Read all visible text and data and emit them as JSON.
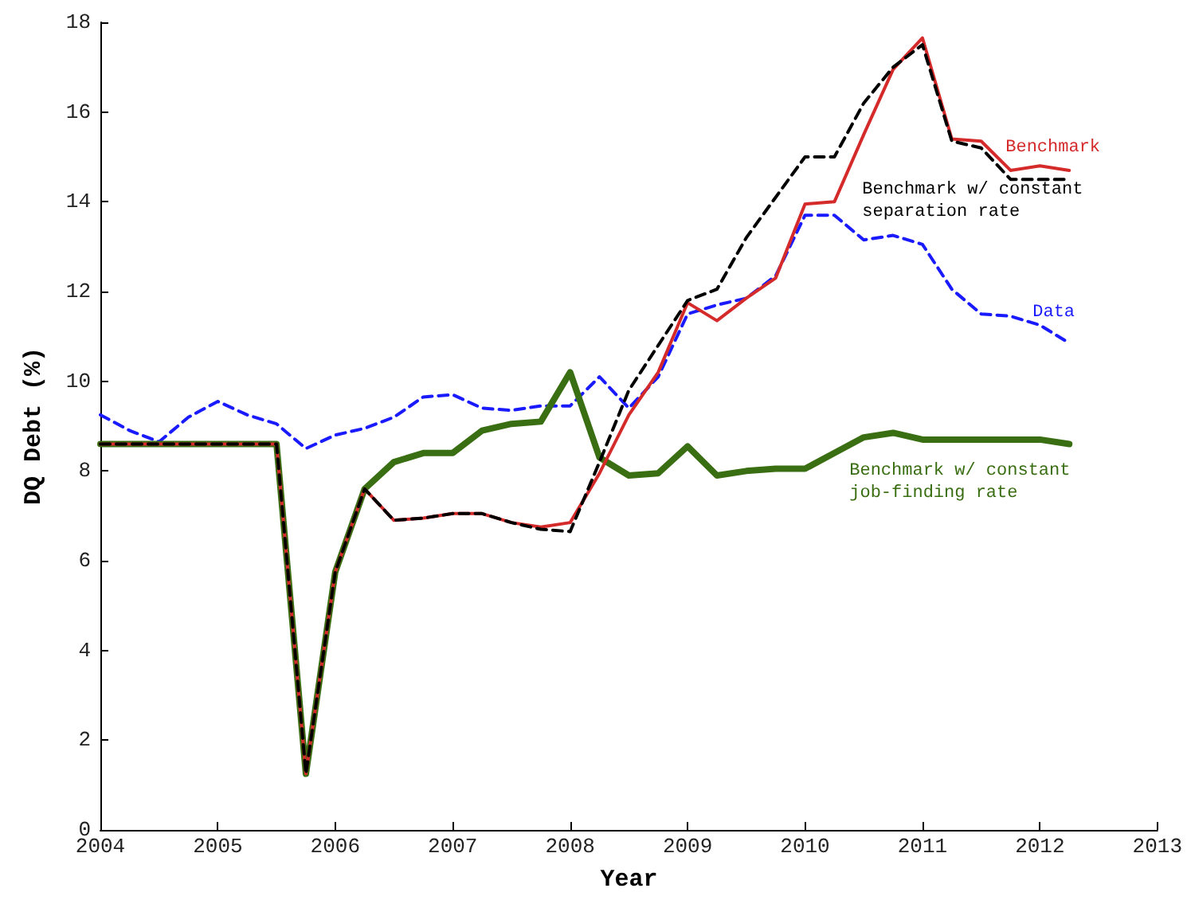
{
  "chart_data": {
    "type": "line",
    "xlabel": "Year",
    "ylabel": "DQ Debt (%)",
    "x": [
      2004,
      2004.25,
      2004.5,
      2004.75,
      2005,
      2005.25,
      2005.5,
      2005.75,
      2006,
      2006.25,
      2006.5,
      2006.75,
      2007,
      2007.25,
      2007.5,
      2007.75,
      2008,
      2008.25,
      2008.5,
      2008.75,
      2009,
      2009.25,
      2009.5,
      2009.75,
      2010,
      2010.25,
      2010.5,
      2010.75,
      2011,
      2011.25,
      2011.5,
      2011.75,
      2012,
      2012.25
    ],
    "series": [
      {
        "name": "Data",
        "color": "#1a1aff",
        "line_style": "dashed",
        "values": [
          9.25,
          8.9,
          8.65,
          9.2,
          9.55,
          9.25,
          9.05,
          8.5,
          8.8,
          8.95,
          9.2,
          9.65,
          9.7,
          9.4,
          9.35,
          9.45,
          9.45,
          10.1,
          9.4,
          10.1,
          11.5,
          11.7,
          11.85,
          12.35,
          13.7,
          13.7,
          13.15,
          13.25,
          13.05,
          12.05,
          11.5,
          11.45,
          11.25,
          10.85
        ]
      },
      {
        "name": "Benchmark w/ constant job-finding rate",
        "color": "#3a6e12",
        "line_style": "solid",
        "values": [
          8.6,
          8.6,
          8.6,
          8.6,
          8.6,
          8.6,
          8.6,
          1.25,
          5.75,
          7.6,
          8.2,
          8.4,
          8.4,
          8.9,
          9.05,
          9.1,
          10.2,
          8.3,
          7.9,
          7.95,
          8.55,
          7.9,
          8.0,
          8.05,
          8.05,
          8.4,
          8.75,
          8.85,
          8.7,
          8.7,
          8.7,
          8.7,
          8.7,
          8.6
        ]
      },
      {
        "name": "Benchmark",
        "color": "#d42a2a",
        "line_style": "solid",
        "values": [
          8.6,
          8.6,
          8.6,
          8.6,
          8.6,
          8.6,
          8.6,
          1.25,
          5.75,
          7.6,
          6.9,
          6.95,
          7.05,
          7.05,
          6.85,
          6.75,
          6.85,
          7.95,
          9.25,
          10.2,
          11.75,
          11.35,
          11.85,
          12.3,
          13.95,
          14.0,
          15.5,
          16.95,
          17.65,
          15.4,
          15.35,
          14.7,
          14.8,
          14.7
        ]
      },
      {
        "name": "Benchmark w/ constant separation rate",
        "color": "#000000",
        "line_style": "dashed",
        "values": [
          8.6,
          8.6,
          8.6,
          8.6,
          8.6,
          8.6,
          8.6,
          1.25,
          5.75,
          7.6,
          6.9,
          6.95,
          7.05,
          7.05,
          6.85,
          6.7,
          6.65,
          8.2,
          9.8,
          10.8,
          11.8,
          12.05,
          13.2,
          14.1,
          15.0,
          15.0,
          16.2,
          17.0,
          17.5,
          15.35,
          15.2,
          14.5,
          14.5,
          14.5
        ]
      }
    ],
    "xlim": [
      2004,
      2013
    ],
    "xticks": [
      2004,
      2005,
      2006,
      2007,
      2008,
      2009,
      2010,
      2011,
      2012,
      2013
    ],
    "ylim": [
      0,
      18
    ],
    "yticks": [
      0,
      2,
      4,
      6,
      8,
      10,
      12,
      14,
      16,
      18
    ],
    "grid": false,
    "legend": false,
    "marker": "none"
  }
}
